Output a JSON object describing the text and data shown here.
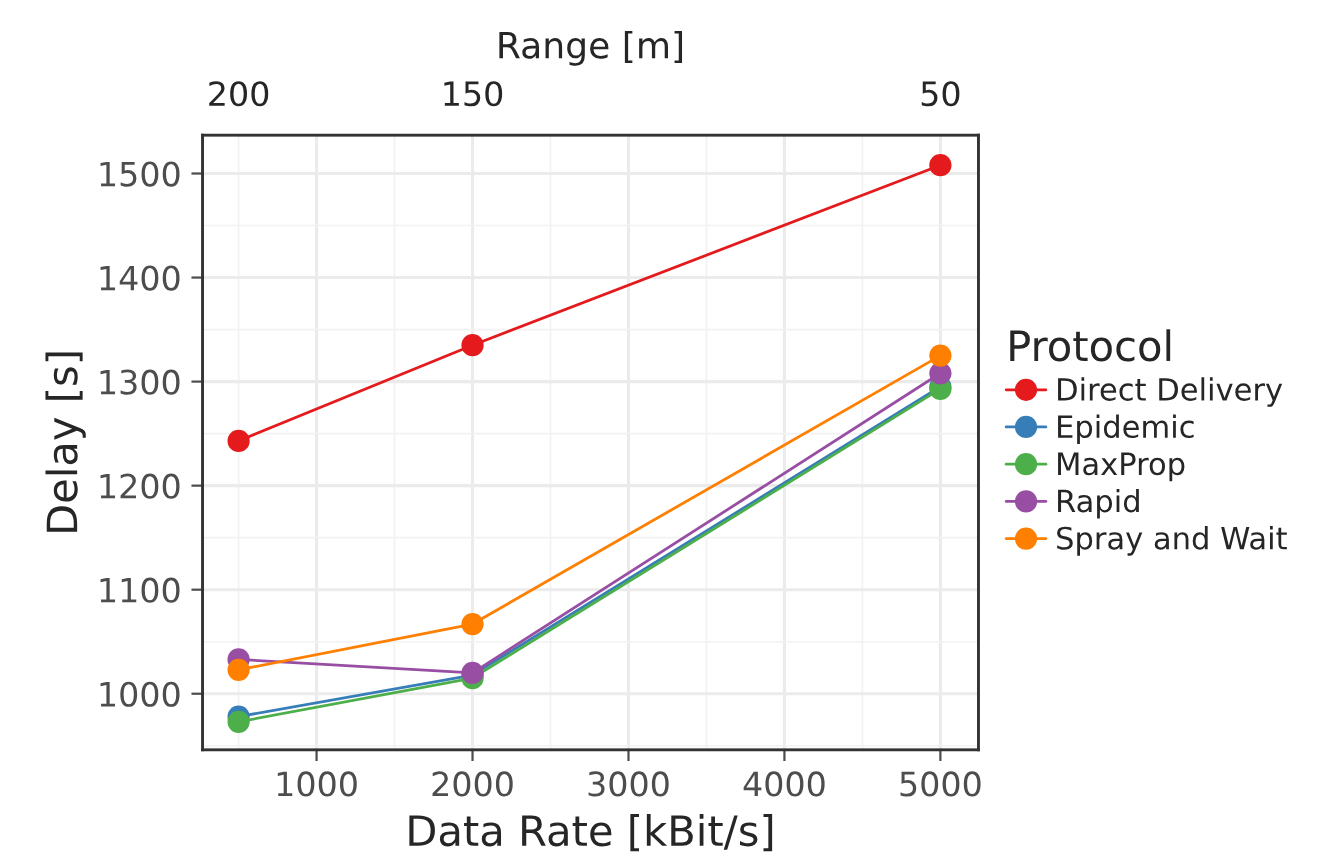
{
  "chart_data": {
    "type": "line",
    "xlabel": "Data Rate [kBit/s]",
    "ylabel": "Delay [s]",
    "x2label": "Range [m]",
    "legend_title": "Protocol",
    "x": [
      500,
      2000,
      5000
    ],
    "series": [
      {
        "name": "Direct Delivery",
        "color": "#e41a1c",
        "values": [
          1243,
          1335,
          1508
        ]
      },
      {
        "name": "Epidemic",
        "color": "#377eb8",
        "values": [
          978,
          1018,
          1295
        ]
      },
      {
        "name": "MaxProp",
        "color": "#4daf4a",
        "values": [
          973,
          1015,
          1293
        ]
      },
      {
        "name": "Rapid",
        "color": "#984ea3",
        "values": [
          1033,
          1020,
          1308
        ]
      },
      {
        "name": "Spray and Wait",
        "color": "#ff7f00",
        "values": [
          1023,
          1067,
          1325
        ]
      }
    ],
    "xlim": [
      269,
      5244
    ],
    "xticks": [
      1000,
      2000,
      3000,
      4000,
      5000
    ],
    "annotations": [
      "200",
      "150",
      "50"
    ],
    "ylim": [
      946,
      1537
    ],
    "yticks": [
      1000,
      1100,
      1200,
      1300,
      1400,
      1500
    ],
    "grid": true,
    "legend": "right",
    "marker": "circle",
    "line_style": "solid"
  }
}
